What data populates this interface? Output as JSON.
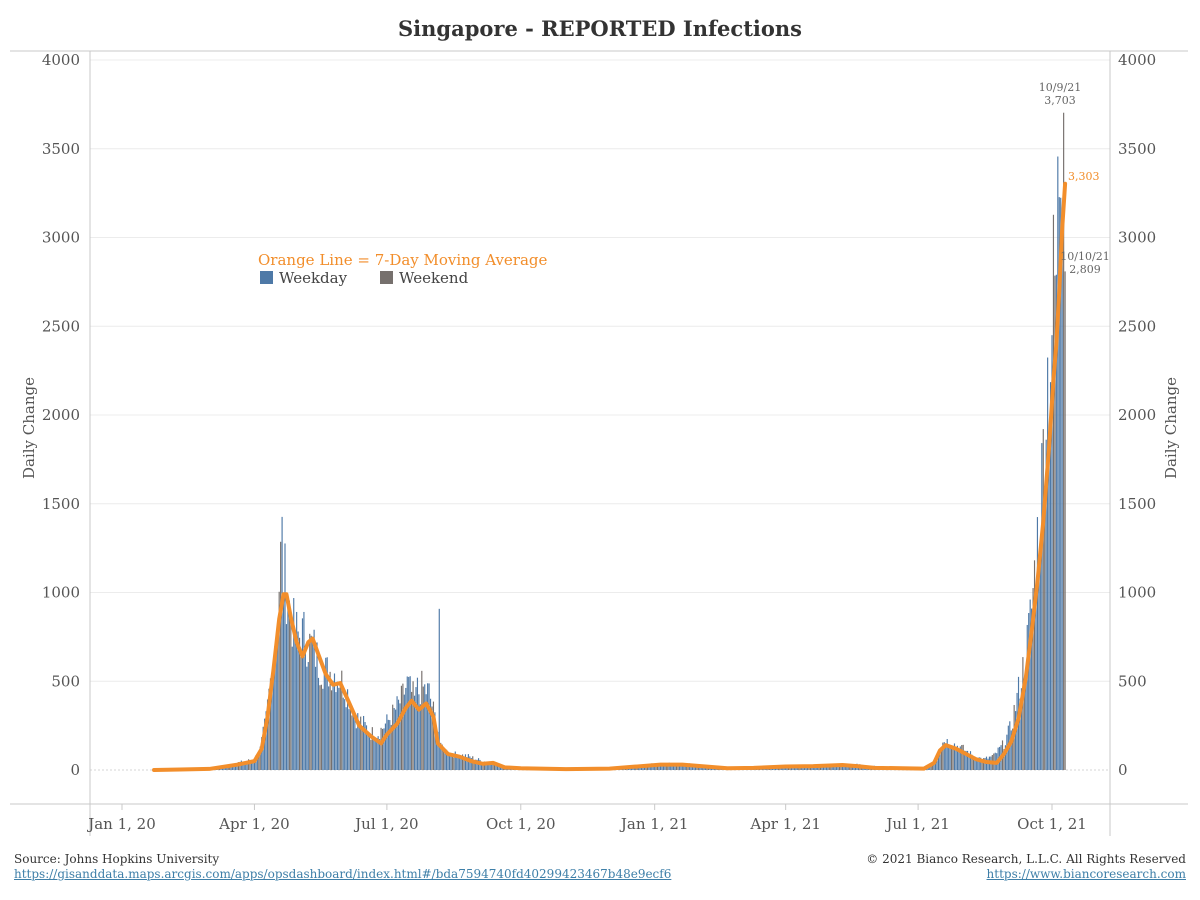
{
  "title": "Singapore - REPORTED Infections",
  "footer": {
    "source_label": "Source: Johns Hopkins University",
    "source_url": "https://gisanddata.maps.arcgis.com/apps/opsdashboard/index.html#/bda7594740fd40299423467b48e9ecf6",
    "copyright": "© 2021 Bianco Research, L.L.C. All Rights Reserved",
    "site_url": "https://www.biancoresearch.com"
  },
  "colors": {
    "weekday": "#4e79a7",
    "weekend": "#76706d",
    "moving_average": "#f28e2b",
    "grid": "#ececec",
    "axis": "#c8c8c8"
  },
  "chart_data": {
    "type": "bar",
    "title": "Singapore - REPORTED Infections",
    "ylabel": "Daily Change",
    "ylabel_right": "Daily Change",
    "ylim": [
      0,
      4000
    ],
    "yticks": [
      "0",
      "500",
      "1000",
      "1500",
      "2000",
      "2500",
      "3000",
      "3500",
      "4000"
    ],
    "x_tick_labels": [
      "Jan 1, 20",
      "Apr 1, 20",
      "Jul 1, 20",
      "Oct 1, 20",
      "Jan 1, 21",
      "Apr 1, 21",
      "Jul 1, 21",
      "Oct 1, 21"
    ],
    "x_tick_dates": [
      "2020-01-01",
      "2020-04-01",
      "2020-07-01",
      "2020-10-01",
      "2021-01-01",
      "2021-04-01",
      "2021-07-01",
      "2021-10-01"
    ],
    "x_range": [
      "2020-01-01",
      "2021-10-10"
    ],
    "grid": true,
    "legend": {
      "note": "Orange Line = 7-Day Moving Average",
      "placement": "top-left",
      "items": [
        "Weekday",
        "Weekend"
      ]
    },
    "annotations": [
      {
        "text": "10/9/21",
        "value_text": "3,703",
        "date": "2021-10-09",
        "value": 3703
      },
      {
        "text": "10/10/21",
        "value_text": "2,809",
        "date": "2021-10-10",
        "value": 2809
      },
      {
        "text": "3,303",
        "date": "2021-10-10",
        "value": 3303,
        "series": "moving_average"
      }
    ],
    "series": [
      {
        "name": "Daily infections",
        "kind": "bars",
        "anchors": [
          [
            "2020-01-23",
            1
          ],
          [
            "2020-02-10",
            5
          ],
          [
            "2020-03-01",
            8
          ],
          [
            "2020-03-20",
            40
          ],
          [
            "2020-04-01",
            60
          ],
          [
            "2020-04-05",
            120
          ],
          [
            "2020-04-09",
            290
          ],
          [
            "2020-04-12",
            510
          ],
          [
            "2020-04-15",
            750
          ],
          [
            "2020-04-18",
            940
          ],
          [
            "2020-04-20",
            1420
          ],
          [
            "2020-04-21",
            1110
          ],
          [
            "2020-04-23",
            1050
          ],
          [
            "2020-04-25",
            930
          ],
          [
            "2020-04-28",
            810
          ],
          [
            "2020-05-01",
            760
          ],
          [
            "2020-05-05",
            770
          ],
          [
            "2020-05-08",
            720
          ],
          [
            "2020-05-12",
            690
          ],
          [
            "2020-05-15",
            610
          ],
          [
            "2020-05-20",
            560
          ],
          [
            "2020-05-25",
            560
          ],
          [
            "2020-05-30",
            520
          ],
          [
            "2020-06-05",
            420
          ],
          [
            "2020-06-10",
            300
          ],
          [
            "2020-06-15",
            260
          ],
          [
            "2020-06-20",
            210
          ],
          [
            "2020-06-25",
            210
          ],
          [
            "2020-07-01",
            270
          ],
          [
            "2020-07-06",
            330
          ],
          [
            "2020-07-11",
            400
          ],
          [
            "2020-07-15",
            490
          ],
          [
            "2020-07-20",
            400
          ],
          [
            "2020-07-25",
            470
          ],
          [
            "2020-07-30",
            440
          ],
          [
            "2020-08-05",
            230
          ],
          [
            "2020-08-08",
            120
          ],
          [
            "2020-08-15",
            90
          ],
          [
            "2020-08-25",
            80
          ],
          [
            "2020-09-01",
            60
          ],
          [
            "2020-09-10",
            40
          ],
          [
            "2020-09-20",
            20
          ],
          [
            "2020-10-01",
            12
          ],
          [
            "2020-11-01",
            8
          ],
          [
            "2020-12-01",
            10
          ],
          [
            "2020-12-20",
            25
          ],
          [
            "2021-01-05",
            35
          ],
          [
            "2021-01-20",
            35
          ],
          [
            "2021-02-05",
            25
          ],
          [
            "2021-02-20",
            15
          ],
          [
            "2021-03-10",
            15
          ],
          [
            "2021-04-01",
            25
          ],
          [
            "2021-04-20",
            25
          ],
          [
            "2021-05-10",
            30
          ],
          [
            "2021-05-20",
            30
          ],
          [
            "2021-06-01",
            20
          ],
          [
            "2021-06-20",
            15
          ],
          [
            "2021-07-05",
            10
          ],
          [
            "2021-07-12",
            50
          ],
          [
            "2021-07-16",
            130
          ],
          [
            "2021-07-19",
            170
          ],
          [
            "2021-07-25",
            150
          ],
          [
            "2021-08-01",
            120
          ],
          [
            "2021-08-08",
            80
          ],
          [
            "2021-08-15",
            60
          ],
          [
            "2021-08-22",
            80
          ],
          [
            "2021-08-29",
            150
          ],
          [
            "2021-09-03",
            250
          ],
          [
            "2021-09-08",
            450
          ],
          [
            "2021-09-13",
            650
          ],
          [
            "2021-09-17",
            930
          ],
          [
            "2021-09-20",
            1200
          ],
          [
            "2021-09-24",
            1640
          ],
          [
            "2021-09-27",
            2150
          ],
          [
            "2021-09-30",
            2400
          ],
          [
            "2021-10-02",
            2700
          ],
          [
            "2021-10-04",
            2800
          ],
          [
            "2021-10-06",
            3480
          ],
          [
            "2021-10-07",
            3570
          ],
          [
            "2021-10-08",
            3590
          ],
          [
            "2021-10-09",
            3703
          ],
          [
            "2021-10-10",
            2809
          ]
        ],
        "spikes": [
          [
            "2020-04-20",
            1426
          ],
          [
            "2020-08-06",
            908
          ],
          [
            "2020-07-22",
            520
          ]
        ]
      },
      {
        "name": "7-Day Moving Average",
        "kind": "line",
        "points": [
          [
            "2020-01-23",
            0
          ],
          [
            "2020-02-10",
            3
          ],
          [
            "2020-03-01",
            6
          ],
          [
            "2020-03-20",
            30
          ],
          [
            "2020-04-01",
            50
          ],
          [
            "2020-04-06",
            120
          ],
          [
            "2020-04-10",
            300
          ],
          [
            "2020-04-14",
            560
          ],
          [
            "2020-04-18",
            850
          ],
          [
            "2020-04-21",
            990
          ],
          [
            "2020-04-23",
            990
          ],
          [
            "2020-04-26",
            860
          ],
          [
            "2020-04-30",
            720
          ],
          [
            "2020-05-04",
            640
          ],
          [
            "2020-05-08",
            720
          ],
          [
            "2020-05-11",
            740
          ],
          [
            "2020-05-15",
            650
          ],
          [
            "2020-05-20",
            540
          ],
          [
            "2020-05-25",
            480
          ],
          [
            "2020-05-30",
            490
          ],
          [
            "2020-06-05",
            380
          ],
          [
            "2020-06-12",
            250
          ],
          [
            "2020-06-20",
            190
          ],
          [
            "2020-06-27",
            150
          ],
          [
            "2020-07-01",
            200
          ],
          [
            "2020-07-08",
            260
          ],
          [
            "2020-07-14",
            350
          ],
          [
            "2020-07-18",
            390
          ],
          [
            "2020-07-23",
            340
          ],
          [
            "2020-07-28",
            375
          ],
          [
            "2020-08-02",
            300
          ],
          [
            "2020-08-05",
            150
          ],
          [
            "2020-08-12",
            90
          ],
          [
            "2020-08-20",
            75
          ],
          [
            "2020-08-28",
            50
          ],
          [
            "2020-09-05",
            35
          ],
          [
            "2020-09-12",
            40
          ],
          [
            "2020-09-20",
            15
          ],
          [
            "2020-10-01",
            10
          ],
          [
            "2020-11-01",
            5
          ],
          [
            "2020-12-01",
            8
          ],
          [
            "2020-12-20",
            20
          ],
          [
            "2021-01-05",
            30
          ],
          [
            "2021-01-20",
            30
          ],
          [
            "2021-02-05",
            20
          ],
          [
            "2021-02-20",
            10
          ],
          [
            "2021-03-10",
            12
          ],
          [
            "2021-04-01",
            20
          ],
          [
            "2021-04-20",
            22
          ],
          [
            "2021-05-10",
            28
          ],
          [
            "2021-05-20",
            22
          ],
          [
            "2021-06-01",
            12
          ],
          [
            "2021-06-20",
            10
          ],
          [
            "2021-07-05",
            8
          ],
          [
            "2021-07-12",
            40
          ],
          [
            "2021-07-16",
            110
          ],
          [
            "2021-07-20",
            140
          ],
          [
            "2021-07-27",
            120
          ],
          [
            "2021-08-03",
            90
          ],
          [
            "2021-08-10",
            60
          ],
          [
            "2021-08-17",
            45
          ],
          [
            "2021-08-24",
            40
          ],
          [
            "2021-08-29",
            90
          ],
          [
            "2021-09-03",
            160
          ],
          [
            "2021-09-08",
            290
          ],
          [
            "2021-09-13",
            520
          ],
          [
            "2021-09-17",
            780
          ],
          [
            "2021-09-21",
            1060
          ],
          [
            "2021-09-25",
            1400
          ],
          [
            "2021-09-29",
            1820
          ],
          [
            "2021-10-02",
            2200
          ],
          [
            "2021-10-04",
            2400
          ],
          [
            "2021-10-06",
            2700
          ],
          [
            "2021-10-08",
            3050
          ],
          [
            "2021-10-10",
            3303
          ]
        ]
      }
    ]
  }
}
